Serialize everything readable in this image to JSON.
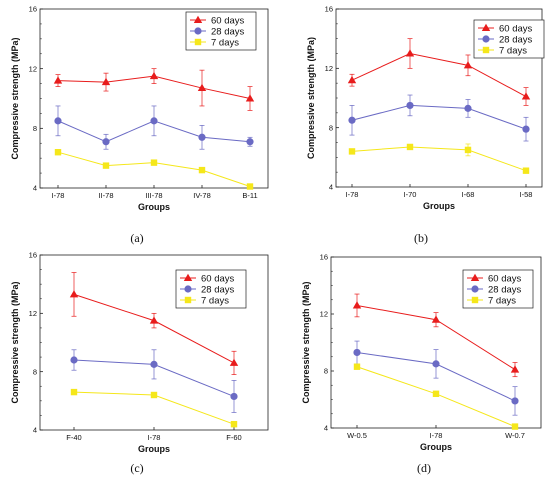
{
  "chart_data": [
    {
      "type": "line",
      "caption": "(a)",
      "categories": [
        "I-78",
        "II-78",
        "III-78",
        "IV-78",
        "B-11"
      ],
      "xlabel": "Groups",
      "ylabel": "Compressive strength (MPa)",
      "ylim": [
        4,
        16
      ],
      "yticks": [
        4,
        8,
        12,
        16
      ],
      "legend_position": "top-right",
      "series": [
        {
          "name": "60 days",
          "color": "#e81c1c",
          "marker": "triangle",
          "values": [
            11.2,
            11.1,
            11.5,
            10.7,
            10.0
          ],
          "errors": [
            0.4,
            0.6,
            0.5,
            1.2,
            0.8
          ]
        },
        {
          "name": "28 days",
          "color": "#6a6ac4",
          "marker": "circle",
          "values": [
            8.5,
            7.1,
            8.5,
            7.4,
            7.1
          ],
          "errors": [
            1.0,
            0.5,
            1.0,
            0.8,
            0.3
          ]
        },
        {
          "name": "7 days",
          "color": "#f5e71a",
          "marker": "square",
          "values": [
            6.4,
            5.5,
            5.7,
            5.2,
            4.1
          ],
          "errors": [
            0,
            0,
            0,
            0,
            0
          ]
        }
      ]
    },
    {
      "type": "line",
      "caption": "(b)",
      "categories": [
        "I-78",
        "I-70",
        "I-68",
        "I-58"
      ],
      "xlabel": "Groups",
      "ylabel": "Compressive strength (MPa)",
      "ylim": [
        4,
        16
      ],
      "yticks": [
        4,
        8,
        12,
        16
      ],
      "legend_position": "top-right",
      "series": [
        {
          "name": "60 days",
          "color": "#e81c1c",
          "marker": "triangle",
          "values": [
            11.2,
            13.0,
            12.2,
            10.1
          ],
          "errors": [
            0.4,
            1.0,
            0.7,
            0.6
          ]
        },
        {
          "name": "28 days",
          "color": "#6a6ac4",
          "marker": "circle",
          "values": [
            8.5,
            9.5,
            9.3,
            7.9
          ],
          "errors": [
            1.0,
            0.7,
            0.6,
            0.8
          ]
        },
        {
          "name": "7 days",
          "color": "#f5e71a",
          "marker": "square",
          "values": [
            6.4,
            6.7,
            6.5,
            5.1
          ],
          "errors": [
            0,
            0,
            0.4,
            0
          ]
        }
      ]
    },
    {
      "type": "line",
      "caption": "(c)",
      "categories": [
        "F-40",
        "I-78",
        "F-60"
      ],
      "xlabel": "Groups",
      "ylabel": "Compressive strength (MPa)",
      "ylim": [
        4,
        16
      ],
      "yticks": [
        4,
        8,
        12,
        16
      ],
      "legend_position": "top-right",
      "series": [
        {
          "name": "60 days",
          "color": "#e81c1c",
          "marker": "triangle",
          "values": [
            13.3,
            11.5,
            8.6
          ],
          "errors": [
            1.5,
            0.5,
            0.8
          ]
        },
        {
          "name": "28 days",
          "color": "#6a6ac4",
          "marker": "circle",
          "values": [
            8.8,
            8.5,
            6.3
          ],
          "errors": [
            0.7,
            1.0,
            1.1
          ]
        },
        {
          "name": "7 days",
          "color": "#f5e71a",
          "marker": "square",
          "values": [
            6.6,
            6.4,
            4.4
          ],
          "errors": [
            0,
            0,
            0
          ]
        }
      ]
    },
    {
      "type": "line",
      "caption": "(d)",
      "categories": [
        "W-0.5",
        "I-78",
        "W-0.7"
      ],
      "xlabel": "Groups",
      "ylabel": "Compressive strength (MPa)",
      "ylim": [
        4,
        16
      ],
      "yticks": [
        4,
        8,
        12,
        16
      ],
      "legend_position": "top-right",
      "series": [
        {
          "name": "60 days",
          "color": "#e81c1c",
          "marker": "triangle",
          "values": [
            12.6,
            11.6,
            8.1
          ],
          "errors": [
            0.8,
            0.5,
            0.5
          ]
        },
        {
          "name": "28 days",
          "color": "#6a6ac4",
          "marker": "circle",
          "values": [
            9.3,
            8.5,
            5.9
          ],
          "errors": [
            0.8,
            1.0,
            1.0
          ]
        },
        {
          "name": "7 days",
          "color": "#f5e71a",
          "marker": "square",
          "values": [
            8.3,
            6.4,
            4.1
          ],
          "errors": [
            0,
            0,
            0
          ]
        }
      ]
    }
  ]
}
